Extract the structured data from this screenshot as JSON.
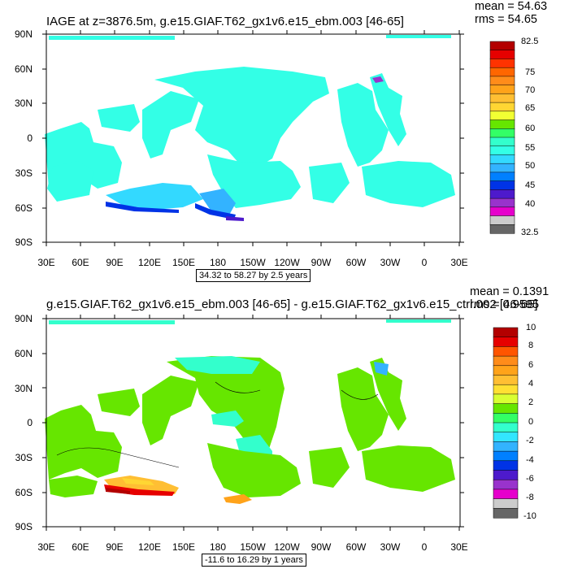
{
  "chart_data": [
    {
      "type": "heatmap",
      "title": "IAGE at z=3876.5m, g.e15.GIAF.T62_gx1v6.e15_ebm.003 [46-65]",
      "stats": {
        "mean": "mean = 54.63",
        "rms": "rms = 54.65"
      },
      "lat_labels": [
        "90N",
        "60N",
        "30N",
        "0",
        "30S",
        "60S",
        "90S"
      ],
      "lon_labels": [
        "30E",
        "60E",
        "90E",
        "120E",
        "150E",
        "180",
        "150W",
        "120W",
        "90W",
        "60W",
        "30W",
        "0",
        "30E"
      ],
      "colorbar": {
        "labels": [
          "82.5",
          "75",
          "70",
          "65",
          "60",
          "55",
          "50",
          "45",
          "40",
          "32.5"
        ],
        "colors": [
          "#b30000",
          "#e60000",
          "#ff3300",
          "#ff6600",
          "#ff8c1a",
          "#ffa31a",
          "#ffbf33",
          "#ffd633",
          "#f2ff33",
          "#66e600",
          "#33ff66",
          "#33ffcc",
          "#33ffe6",
          "#33d9ff",
          "#33b3ff",
          "#0080ff",
          "#0033e6",
          "#4d1acc",
          "#9933cc",
          "#e600cc",
          "#cccccc",
          "#666666"
        ]
      },
      "range_text": "34.32 to 58.27 by 2.5 years"
    },
    {
      "type": "heatmap",
      "title": "g.e15.GIAF.T62_gx1v6.e15_ebm.003 [46-65] - g.e15.GIAF.T62_gx1v6.e15_ctrl.002 [46-65]",
      "stats": {
        "mean": "mean = 0.1391",
        "rms": "rms = 0.9595"
      },
      "lat_labels": [
        "90N",
        "60N",
        "30N",
        "0",
        "30S",
        "60S",
        "90S"
      ],
      "lon_labels": [
        "30E",
        "60E",
        "90E",
        "120E",
        "150E",
        "180",
        "150W",
        "120W",
        "90W",
        "60W",
        "30W",
        "0",
        "30E"
      ],
      "colorbar": {
        "labels": [
          "10",
          "8",
          "6",
          "4",
          "2",
          "0",
          "-2",
          "-4",
          "-6",
          "-8",
          "-10"
        ],
        "colors": [
          "#b30000",
          "#e60000",
          "#ff5500",
          "#ff8c1a",
          "#ffa31a",
          "#ffbf33",
          "#ffe033",
          "#d9ff33",
          "#66e600",
          "#33ff66",
          "#33ffcc",
          "#33e6ff",
          "#33b3ff",
          "#0080ff",
          "#0033e6",
          "#4d1acc",
          "#9933cc",
          "#e600cc",
          "#cccccc",
          "#666666"
        ]
      },
      "range_text": "-11.6 to 16.29 by 1 years"
    }
  ]
}
